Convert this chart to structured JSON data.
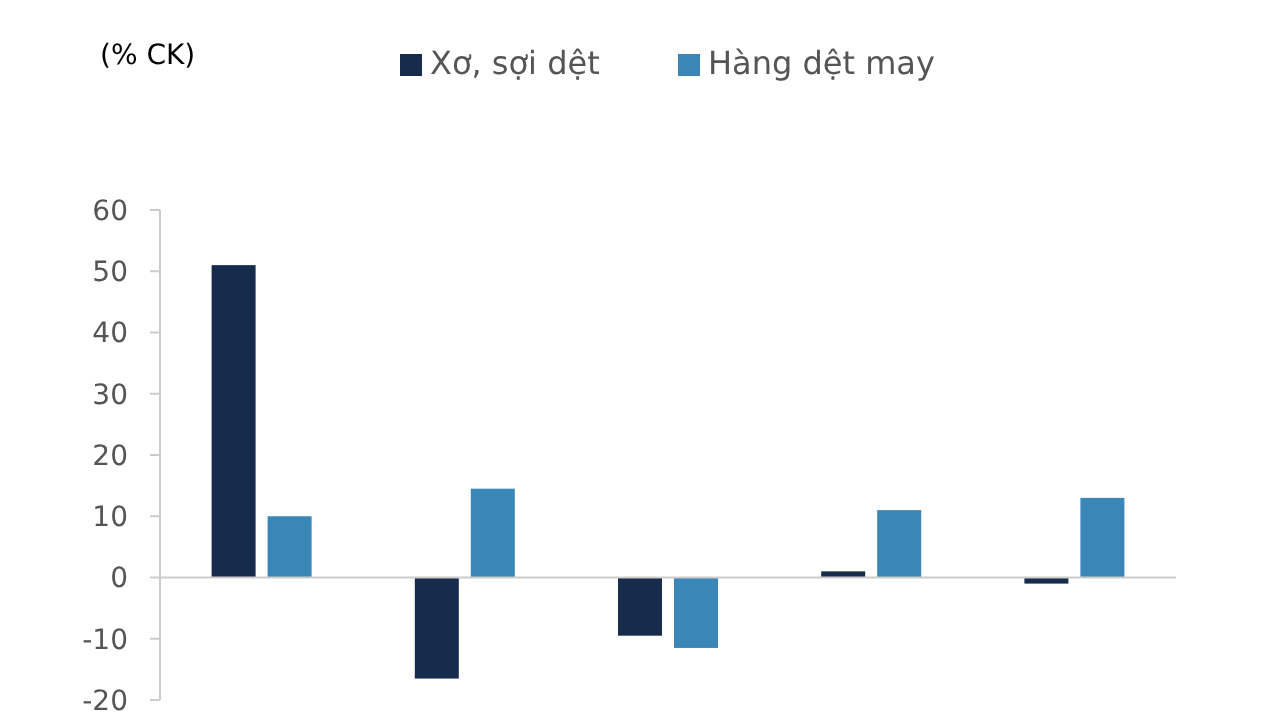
{
  "chart_data": {
    "type": "bar",
    "ylabel": "(% CK)",
    "categories": [
      null,
      null,
      null,
      null,
      null
    ],
    "series": [
      {
        "name": "Xơ, sợi dệt",
        "color": "#172b4d",
        "values": [
          51,
          -16.5,
          -9.5,
          1,
          -1
        ]
      },
      {
        "name": "Hàng dệt may",
        "color": "#3a86b7",
        "values": [
          10,
          14.5,
          -11.5,
          11,
          13
        ]
      }
    ],
    "ylim": [
      -20,
      60
    ],
    "yticks": [
      -20,
      -10,
      0,
      10,
      20,
      30,
      40,
      50,
      60
    ],
    "legend": "top"
  }
}
